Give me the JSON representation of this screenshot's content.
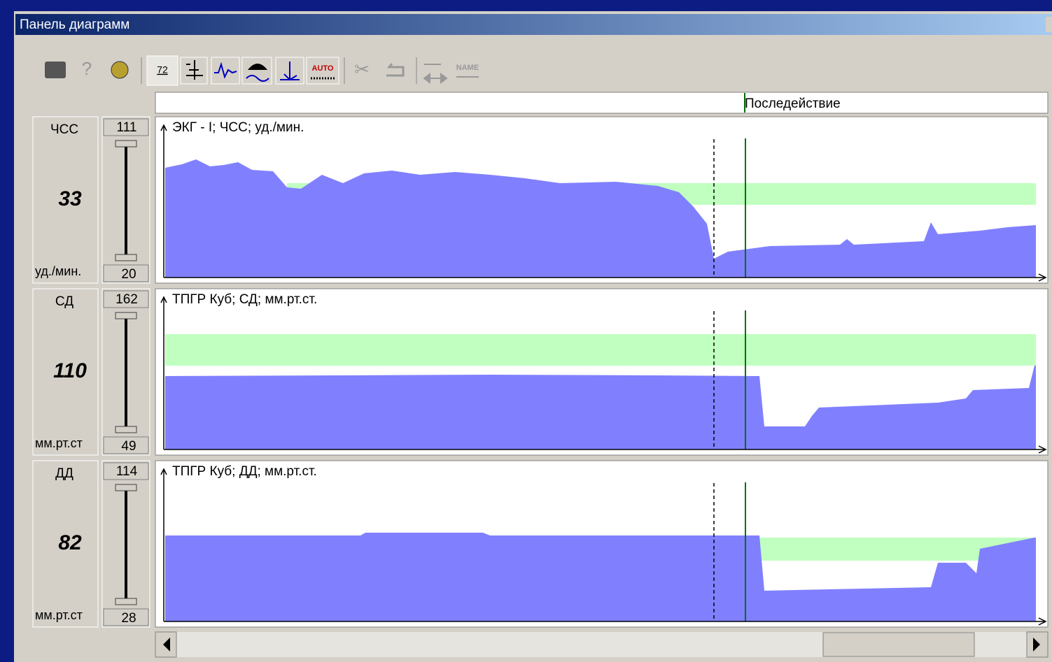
{
  "window": {
    "title": "Панель диаграмм"
  },
  "toolbar": {
    "scale_icon": "72",
    "auto_icon": "AUTO",
    "name_icon": "NAME"
  },
  "timeline": {
    "label": "Последействие"
  },
  "panels": [
    {
      "param": "ЧСС",
      "value": 33,
      "unit": "уд./мин.",
      "max": 111,
      "min": 20,
      "chart_title": "ЭКГ - I; ЧСС; уд./мин."
    },
    {
      "param": "СД",
      "value": 110,
      "unit": "мм.рт.ст",
      "max": 162,
      "min": 49,
      "chart_title": "ТПГР Куб; СД; мм.рт.ст."
    },
    {
      "param": "ДД",
      "value": 82,
      "unit": "мм.рт.ст",
      "max": 114,
      "min": 28,
      "chart_title": "ТПГР Куб; ДД; мм.рт.ст."
    }
  ]
}
